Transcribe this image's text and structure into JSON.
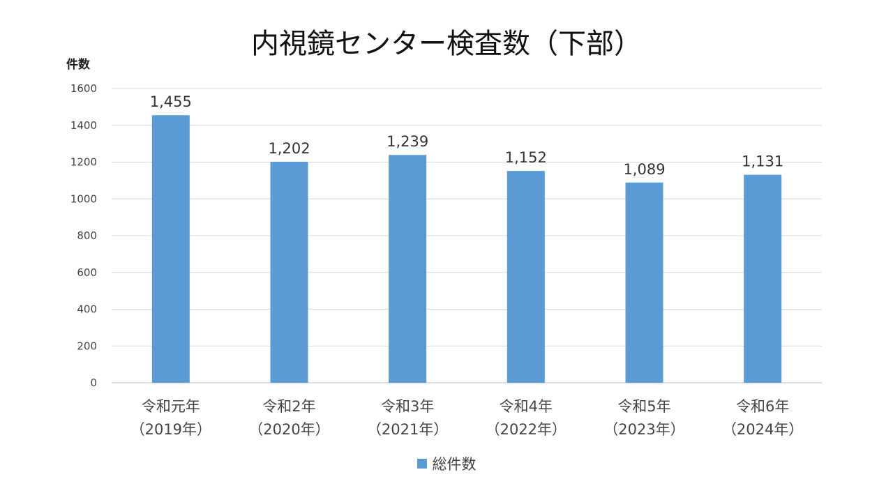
{
  "chart_data": {
    "type": "bar",
    "title": "内視鏡センター検査数（下部）",
    "ylabel": "件数",
    "xlabel": "",
    "categories": [
      [
        "令和元年",
        "（2019年）"
      ],
      [
        "令和2年",
        "（2020年）"
      ],
      [
        "令和3年",
        "（2021年）"
      ],
      [
        "令和4年",
        "（2022年）"
      ],
      [
        "令和5年",
        "（2023年）"
      ],
      [
        "令和6年",
        "（2024年）"
      ]
    ],
    "series": [
      {
        "name": "総件数",
        "color": "#5B9BD5",
        "values": [
          1455,
          1202,
          1239,
          1152,
          1089,
          1131
        ],
        "labels": [
          "1,455",
          "1,202",
          "1,239",
          "1,152",
          "1,089",
          "1,131"
        ]
      }
    ],
    "ylim": [
      0,
      1600
    ],
    "yticks": [
      0,
      200,
      400,
      600,
      800,
      1000,
      1200,
      1400,
      1600
    ],
    "grid": true,
    "legend_position": "bottom"
  }
}
